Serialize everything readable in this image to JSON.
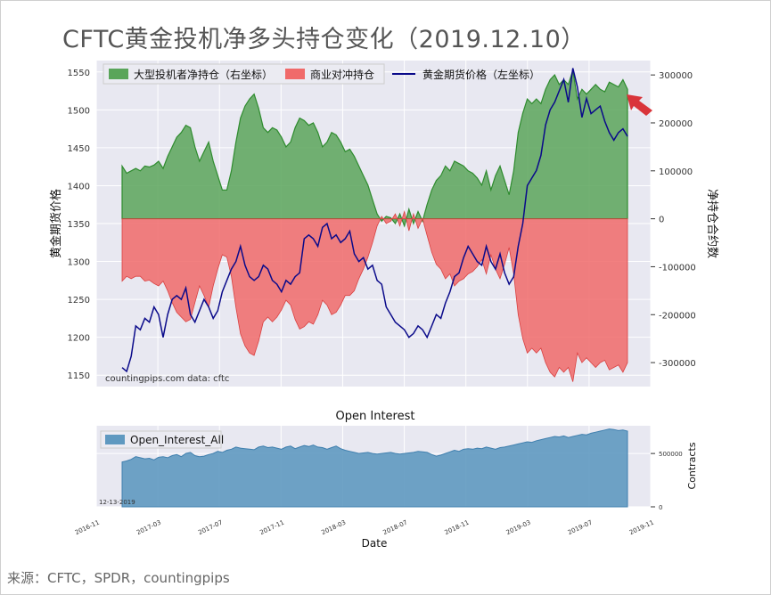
{
  "title": "CFTC黄金投机净多头持仓变化（2019.12.10）",
  "source": "来源：CFTC，SPDR，countingpips",
  "colors": {
    "speculator": "#5aa55a",
    "commercial": "#f06a6a",
    "price": "#0a0a8a",
    "open_interest": "#5f99c0",
    "arrow": "#d9343a",
    "plot_bg": "#e8e8f1"
  },
  "chart_data": [
    {
      "type": "area",
      "title": "",
      "watermark": "countingpips.com     data: cftc",
      "ylabel_left": "黄金期货价格",
      "ylabel_right": "净持仓合约数",
      "ylim_left": [
        1135,
        1565
      ],
      "ylim_right": [
        -350000,
        330000
      ],
      "yticks_left": [
        1150,
        1200,
        1250,
        1300,
        1350,
        1400,
        1450,
        1500,
        1550
      ],
      "yticks_right": [
        -300000,
        -200000,
        -100000,
        0,
        100000,
        200000,
        300000
      ],
      "legend": [
        {
          "label": "大型投机者净持仓（右坐标）",
          "kind": "area",
          "color": "#5aa55a"
        },
        {
          "label": "商业对冲持仓",
          "kind": "area",
          "color": "#f06a6a"
        },
        {
          "label": "黄金期货价格（左坐标）",
          "kind": "line",
          "color": "#0a0a8a"
        }
      ],
      "legend_position": "top-left",
      "grid": true,
      "x_start": "2016-12-13",
      "x_end": "2019-12-10",
      "series": [
        {
          "name": "大型投机者净持仓（右坐标）",
          "axis": "right",
          "values": [
            110000,
            95000,
            100000,
            105000,
            100000,
            110000,
            108000,
            112000,
            120000,
            105000,
            130000,
            150000,
            170000,
            180000,
            195000,
            190000,
            150000,
            120000,
            140000,
            160000,
            120000,
            90000,
            60000,
            60000,
            100000,
            160000,
            210000,
            235000,
            250000,
            260000,
            230000,
            190000,
            180000,
            190000,
            185000,
            170000,
            150000,
            160000,
            190000,
            210000,
            205000,
            195000,
            200000,
            180000,
            150000,
            160000,
            180000,
            175000,
            160000,
            140000,
            145000,
            130000,
            110000,
            90000,
            70000,
            40000,
            10000,
            -5000,
            5000,
            2000,
            -10000,
            10000,
            -15000,
            20000,
            -10000,
            15000,
            -5000,
            30000,
            60000,
            80000,
            90000,
            110000,
            100000,
            120000,
            115000,
            110000,
            100000,
            95000,
            85000,
            70000,
            100000,
            60000,
            90000,
            110000,
            80000,
            50000,
            100000,
            180000,
            220000,
            250000,
            240000,
            250000,
            240000,
            270000,
            290000,
            300000,
            280000,
            290000,
            280000,
            310000,
            250000,
            270000,
            260000,
            270000,
            280000,
            270000,
            265000,
            285000,
            280000,
            275000,
            290000,
            270000
          ]
        },
        {
          "name": "商业对冲持仓",
          "axis": "right",
          "values": [
            -130000,
            -120000,
            -125000,
            -120000,
            -120000,
            -130000,
            -128000,
            -135000,
            -140000,
            -130000,
            -150000,
            -175000,
            -195000,
            -205000,
            -215000,
            -210000,
            -175000,
            -140000,
            -160000,
            -185000,
            -140000,
            -105000,
            -75000,
            -80000,
            -120000,
            -185000,
            -240000,
            -265000,
            -280000,
            -285000,
            -255000,
            -215000,
            -205000,
            -215000,
            -205000,
            -190000,
            -170000,
            -180000,
            -210000,
            -230000,
            -225000,
            -215000,
            -220000,
            -200000,
            -170000,
            -180000,
            -200000,
            -195000,
            -180000,
            -160000,
            -160000,
            -150000,
            -125000,
            -105000,
            -80000,
            -50000,
            -15000,
            5000,
            -10000,
            -5000,
            10000,
            -15000,
            15000,
            -25000,
            10000,
            -20000,
            0,
            -35000,
            -70000,
            -95000,
            -105000,
            -125000,
            -115000,
            -140000,
            -130000,
            -125000,
            -115000,
            -110000,
            -100000,
            -85000,
            -115000,
            -75000,
            -105000,
            -125000,
            -95000,
            -60000,
            -115000,
            -200000,
            -250000,
            -280000,
            -270000,
            -280000,
            -270000,
            -300000,
            -320000,
            -330000,
            -310000,
            -320000,
            -310000,
            -340000,
            -280000,
            -300000,
            -290000,
            -300000,
            -310000,
            -300000,
            -295000,
            -315000,
            -310000,
            -305000,
            -320000,
            -300000
          ]
        },
        {
          "name": "黄金期货价格（左坐标）",
          "axis": "left",
          "values": [
            1160,
            1155,
            1175,
            1215,
            1210,
            1225,
            1220,
            1240,
            1230,
            1200,
            1230,
            1250,
            1255,
            1250,
            1265,
            1230,
            1220,
            1235,
            1250,
            1240,
            1225,
            1235,
            1260,
            1275,
            1290,
            1300,
            1320,
            1295,
            1280,
            1275,
            1280,
            1295,
            1290,
            1275,
            1270,
            1260,
            1275,
            1270,
            1280,
            1285,
            1330,
            1335,
            1330,
            1320,
            1345,
            1350,
            1330,
            1335,
            1325,
            1330,
            1340,
            1310,
            1300,
            1305,
            1290,
            1295,
            1275,
            1270,
            1240,
            1230,
            1220,
            1215,
            1210,
            1200,
            1205,
            1215,
            1210,
            1200,
            1215,
            1230,
            1225,
            1245,
            1260,
            1280,
            1285,
            1305,
            1320,
            1310,
            1300,
            1295,
            1320,
            1300,
            1290,
            1310,
            1285,
            1270,
            1280,
            1320,
            1350,
            1400,
            1410,
            1420,
            1440,
            1480,
            1500,
            1510,
            1525,
            1540,
            1510,
            1555,
            1530,
            1490,
            1515,
            1495,
            1500,
            1505,
            1485,
            1470,
            1460,
            1470,
            1475,
            1465
          ]
        }
      ]
    },
    {
      "type": "area",
      "title": "Open Interest",
      "xlabel": "Date",
      "ylabel": "Contracts",
      "ylim": [
        0,
        760000
      ],
      "yticks": [
        0,
        500000
      ],
      "legend": [
        {
          "label": "Open_Interest_All",
          "color": "#5f99c0"
        }
      ],
      "legend_position": "top-left",
      "grid": true,
      "xticks": [
        "2016-11",
        "2017-03",
        "2017-07",
        "2017-11",
        "2018-03",
        "2018-07",
        "2018-11",
        "2019-03",
        "2019-07",
        "2019-11"
      ],
      "annotation": "12-13-2019",
      "series": [
        {
          "name": "Open_Interest_All",
          "values": [
            420000,
            430000,
            445000,
            470000,
            460000,
            450000,
            455000,
            440000,
            465000,
            470000,
            460000,
            480000,
            490000,
            470000,
            500000,
            510000,
            480000,
            470000,
            475000,
            490000,
            500000,
            520000,
            510000,
            530000,
            540000,
            560000,
            550000,
            545000,
            540000,
            535000,
            560000,
            570000,
            555000,
            560000,
            550000,
            540000,
            560000,
            570000,
            545000,
            560000,
            575000,
            565000,
            580000,
            560000,
            555000,
            540000,
            555000,
            570000,
            545000,
            530000,
            520000,
            510000,
            500000,
            505000,
            510000,
            500000,
            495000,
            500000,
            505000,
            510000,
            500000,
            495000,
            500000,
            505000,
            510000,
            520000,
            515000,
            510000,
            490000,
            475000,
            485000,
            500000,
            515000,
            530000,
            520000,
            540000,
            545000,
            540000,
            550000,
            545000,
            560000,
            550000,
            540000,
            555000,
            560000,
            570000,
            580000,
            590000,
            600000,
            610000,
            605000,
            620000,
            630000,
            640000,
            650000,
            660000,
            655000,
            665000,
            650000,
            660000,
            670000,
            680000,
            675000,
            690000,
            700000,
            710000,
            720000,
            730000,
            725000,
            715000,
            720000,
            710000
          ]
        }
      ]
    }
  ]
}
